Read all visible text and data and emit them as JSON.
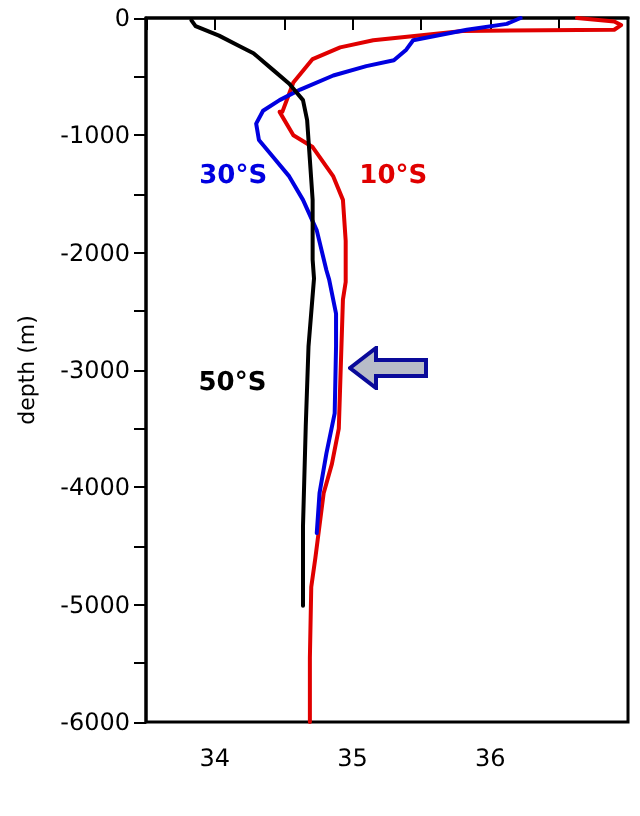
{
  "chart_data": {
    "type": "line",
    "ylabel": "depth (m)",
    "xlim": [
      33.5,
      37
    ],
    "ylim": [
      -6000,
      0
    ],
    "xticks": [
      {
        "value": 33.5,
        "label": null
      },
      34,
      {
        "value": 34.5,
        "label": null
      },
      35,
      {
        "value": 35.5,
        "label": null
      },
      36,
      {
        "value": 36.5,
        "label": null
      }
    ],
    "yticks": [
      -6000,
      {
        "value": -5500,
        "label": null
      },
      -5000,
      {
        "value": -4500,
        "label": null
      },
      -4000,
      {
        "value": -3500,
        "label": null
      },
      -3000,
      {
        "value": -2500,
        "label": null
      },
      -2000,
      {
        "value": -1500,
        "label": null
      },
      -1000,
      {
        "value": -500,
        "label": null
      },
      0
    ],
    "grid": false,
    "legend": false,
    "marker": "none",
    "line_style": "solid",
    "series": [
      {
        "name": "10°S",
        "color": "#e00000",
        "x": [
          36.63,
          36.9,
          36.95,
          36.9,
          35.8,
          35.15,
          34.91,
          34.71,
          34.57,
          34.49,
          34.47,
          34.57,
          34.71,
          34.86,
          34.93,
          34.95,
          34.95,
          34.93,
          34.9,
          34.85,
          34.79,
          34.73,
          34.72,
          34.7,
          34.69,
          34.69
        ],
        "values": [
          0,
          -30,
          -60,
          -100,
          -110,
          -190,
          -250,
          -350,
          -550,
          -800,
          -800,
          -1000,
          -1100,
          -1350,
          -1550,
          -1900,
          -2250,
          -2400,
          -3500,
          -3800,
          -4050,
          -4600,
          -4600,
          -4850,
          -5450,
          -6000
        ]
      },
      {
        "name": "30°S",
        "color": "#0000e0",
        "x": [
          36.22,
          36.12,
          35.83,
          35.44,
          35.39,
          35.3,
          35.1,
          34.86,
          34.62,
          34.47,
          34.35,
          34.3,
          34.32,
          34.42,
          34.54,
          34.64,
          34.74,
          34.81,
          34.83,
          34.88,
          34.88,
          34.87,
          34.81,
          34.76,
          34.74
        ],
        "values": [
          0,
          -50,
          -100,
          -190,
          -270,
          -360,
          -410,
          -490,
          -610,
          -700,
          -790,
          -900,
          -1040,
          -1180,
          -1350,
          -1550,
          -1810,
          -2150,
          -2230,
          -2520,
          -2800,
          -3370,
          -3710,
          -4050,
          -4390
        ]
      },
      {
        "name": "50°S",
        "color": "#000000",
        "x": [
          33.83,
          33.86,
          34.03,
          34.18,
          34.28,
          34.42,
          34.54,
          34.64,
          34.67,
          34.69,
          34.71,
          34.71,
          34.72,
          34.68,
          34.66,
          34.64,
          34.64
        ],
        "values": [
          -20,
          -70,
          -150,
          -240,
          -300,
          -440,
          -560,
          -700,
          -870,
          -1210,
          -1550,
          -2060,
          -2220,
          -2800,
          -3480,
          -4330,
          -5010
        ]
      }
    ]
  }
}
